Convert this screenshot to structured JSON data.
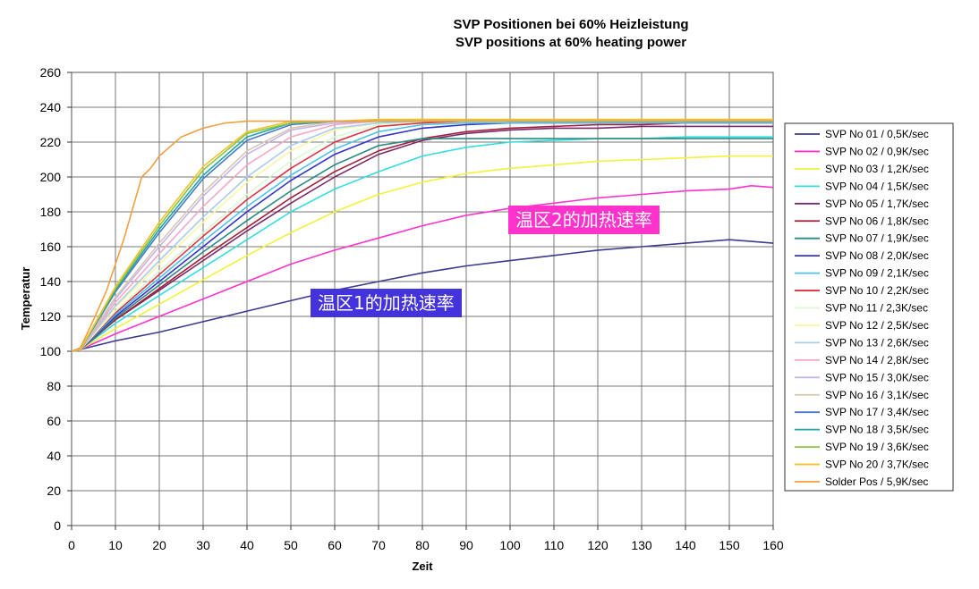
{
  "chart_data": {
    "type": "line",
    "title": "SVP Positionen bei 60% Heizleistung",
    "subtitle": "SVP positions at 60% heating power",
    "xlabel": "Zeit",
    "ylabel": "Temperatur",
    "xlim": [
      0,
      160
    ],
    "ylim": [
      0,
      260
    ],
    "xticks": [
      0,
      10,
      20,
      30,
      40,
      50,
      60,
      70,
      80,
      90,
      100,
      110,
      120,
      130,
      140,
      150,
      160
    ],
    "yticks": [
      0,
      20,
      40,
      60,
      80,
      100,
      120,
      140,
      160,
      180,
      200,
      220,
      240,
      260
    ],
    "grid": true,
    "legend_position": "right",
    "series": [
      {
        "name": "SVP No 01 / 0,5K/sec",
        "color": "#3b3b8e",
        "x": [
          0,
          2,
          10,
          20,
          30,
          40,
          50,
          60,
          70,
          80,
          90,
          100,
          110,
          120,
          130,
          140,
          150,
          155,
          160
        ],
        "y": [
          100,
          101,
          106,
          111,
          117,
          123,
          129,
          135,
          140,
          145,
          149,
          152,
          155,
          158,
          160,
          162,
          164,
          163,
          162
        ]
      },
      {
        "name": "SVP No 02 / 0,9K/sec",
        "color": "#ff33cc",
        "x": [
          0,
          2,
          10,
          20,
          30,
          40,
          50,
          60,
          70,
          80,
          90,
          100,
          110,
          120,
          130,
          140,
          150,
          155,
          160
        ],
        "y": [
          100,
          101,
          110,
          120,
          130,
          140,
          150,
          158,
          165,
          172,
          178,
          182,
          185,
          188,
          190,
          192,
          193,
          195,
          194
        ]
      },
      {
        "name": "SVP No 03 / 1,2K/sec",
        "color": "#f2f23a",
        "x": [
          0,
          2,
          10,
          20,
          30,
          40,
          50,
          60,
          70,
          80,
          90,
          100,
          110,
          120,
          130,
          140,
          150,
          160
        ],
        "y": [
          100,
          101,
          113,
          127,
          141,
          155,
          168,
          180,
          190,
          197,
          202,
          205,
          207,
          209,
          210,
          211,
          212,
          212
        ]
      },
      {
        "name": "SVP No 04 / 1,5K/sec",
        "color": "#33dddd",
        "x": [
          0,
          2,
          10,
          20,
          30,
          40,
          50,
          60,
          70,
          80,
          90,
          100,
          110,
          120,
          130,
          140,
          150,
          160
        ],
        "y": [
          100,
          101,
          116,
          132,
          148,
          164,
          180,
          193,
          203,
          212,
          217,
          220,
          221,
          222,
          222,
          223,
          223,
          223
        ]
      },
      {
        "name": "SVP No 05 / 1,7K/sec",
        "color": "#7a2a6a",
        "x": [
          0,
          2,
          10,
          20,
          30,
          40,
          50,
          60,
          70,
          80,
          90,
          100,
          110,
          120,
          130,
          140,
          150,
          160
        ],
        "y": [
          100,
          101,
          118,
          135,
          152,
          169,
          185,
          200,
          213,
          221,
          225,
          227,
          228,
          228,
          229,
          229,
          229,
          229
        ]
      },
      {
        "name": "SVP No 06 / 1,8K/sec",
        "color": "#a3203a",
        "x": [
          0,
          2,
          10,
          20,
          30,
          40,
          50,
          60,
          70,
          80,
          90,
          100,
          110,
          120,
          130,
          140,
          150,
          160
        ],
        "y": [
          100,
          101,
          118,
          136,
          154,
          171,
          188,
          203,
          215,
          222,
          226,
          228,
          229,
          230,
          230,
          231,
          231,
          231
        ]
      },
      {
        "name": "SVP No 07 / 1,9K/sec",
        "color": "#2d8a80",
        "x": [
          0,
          2,
          10,
          20,
          30,
          40,
          50,
          60,
          70,
          80,
          90,
          100,
          110,
          120,
          130,
          140,
          150,
          160
        ],
        "y": [
          100,
          101,
          119,
          138,
          157,
          175,
          192,
          207,
          218,
          222,
          222,
          222,
          222,
          222,
          222,
          222,
          222,
          222
        ]
      },
      {
        "name": "SVP No 08 / 2,0K/sec",
        "color": "#3333cc",
        "x": [
          0,
          2,
          10,
          20,
          30,
          40,
          50,
          60,
          70,
          80,
          90,
          100,
          110,
          120,
          130,
          140,
          150,
          160
        ],
        "y": [
          100,
          101,
          120,
          140,
          160,
          180,
          198,
          213,
          223,
          228,
          230,
          231,
          231,
          231,
          231,
          231,
          231,
          231
        ]
      },
      {
        "name": "SVP No 09 / 2,1K/sec",
        "color": "#4cc3e8",
        "x": [
          0,
          2,
          10,
          20,
          30,
          40,
          50,
          60,
          70,
          80,
          90,
          100,
          110,
          120,
          130,
          140,
          150,
          160
        ],
        "y": [
          100,
          101,
          121,
          142,
          163,
          183,
          201,
          216,
          226,
          230,
          231,
          231,
          231,
          231,
          231,
          231,
          231,
          231
        ]
      },
      {
        "name": "SVP No 10 / 2,2K/sec",
        "color": "#dd3344",
        "x": [
          0,
          2,
          10,
          20,
          30,
          40,
          50,
          60,
          70,
          80,
          90,
          100,
          110,
          120,
          130,
          140,
          150,
          160
        ],
        "y": [
          100,
          101,
          122,
          144,
          166,
          187,
          205,
          220,
          229,
          231,
          232,
          232,
          232,
          232,
          232,
          232,
          232,
          232
        ]
      },
      {
        "name": "SVP No 11 / 2,3K/sec",
        "color": "#ddf7d0",
        "x": [
          0,
          2,
          10,
          20,
          30,
          40,
          50,
          60,
          70,
          80,
          90,
          100,
          110,
          120,
          130,
          140,
          150,
          160
        ],
        "y": [
          100,
          101,
          123,
          146,
          168,
          190,
          209,
          223,
          230,
          232,
          232,
          232,
          232,
          232,
          232,
          232,
          232,
          232
        ]
      },
      {
        "name": "SVP No 12 / 2,5K/sec",
        "color": "#f7f7a8",
        "x": [
          0,
          2,
          10,
          20,
          30,
          40,
          50,
          60,
          70,
          80,
          90,
          100,
          110,
          120,
          130,
          140,
          150,
          160
        ],
        "y": [
          100,
          101,
          125,
          150,
          174,
          197,
          215,
          227,
          231,
          232,
          232,
          232,
          232,
          232,
          232,
          232,
          232,
          232
        ]
      },
      {
        "name": "SVP No 13 / 2,6K/sec",
        "color": "#a8cdea",
        "x": [
          0,
          2,
          10,
          20,
          30,
          40,
          50,
          60,
          70,
          80,
          90,
          100,
          110,
          120,
          130,
          140,
          150,
          160
        ],
        "y": [
          100,
          101,
          126,
          152,
          177,
          200,
          218,
          228,
          231,
          232,
          232,
          232,
          232,
          232,
          232,
          232,
          232,
          232
        ]
      },
      {
        "name": "SVP No 14 / 2,8K/sec",
        "color": "#f4a8c8",
        "x": [
          0,
          2,
          10,
          20,
          30,
          40,
          50,
          60,
          70,
          80,
          90,
          100,
          110,
          120,
          130,
          140,
          150,
          160
        ],
        "y": [
          100,
          101,
          128,
          156,
          183,
          207,
          223,
          230,
          232,
          232,
          232,
          232,
          232,
          232,
          232,
          232,
          232,
          232
        ]
      },
      {
        "name": "SVP No 15 / 3,0K/sec",
        "color": "#c7b3e6",
        "x": [
          0,
          2,
          10,
          20,
          30,
          40,
          50,
          60,
          70,
          80,
          90,
          100,
          110,
          120,
          130,
          140,
          150,
          160
        ],
        "y": [
          100,
          101,
          130,
          160,
          189,
          213,
          227,
          231,
          232,
          232,
          232,
          232,
          232,
          232,
          232,
          232,
          232,
          232
        ]
      },
      {
        "name": "SVP No 16 / 3,1K/sec",
        "color": "#d8c8b0",
        "x": [
          0,
          2,
          10,
          20,
          30,
          40,
          50,
          60,
          70,
          80,
          90,
          100,
          110,
          120,
          130,
          140,
          150,
          160
        ],
        "y": [
          100,
          101,
          131,
          162,
          191,
          215,
          228,
          232,
          232,
          232,
          232,
          232,
          232,
          232,
          232,
          232,
          232,
          232
        ]
      },
      {
        "name": "SVP No 17 / 3,4K/sec",
        "color": "#4a7ac8",
        "x": [
          0,
          2,
          10,
          20,
          30,
          40,
          50,
          60,
          70,
          80,
          90,
          100,
          110,
          120,
          130,
          140,
          150,
          160
        ],
        "y": [
          100,
          101,
          134,
          168,
          199,
          221,
          230,
          232,
          232,
          232,
          232,
          232,
          232,
          232,
          232,
          232,
          232,
          232
        ]
      },
      {
        "name": "SVP No 18 / 3,5K/sec",
        "color": "#1fa6a6",
        "x": [
          0,
          2,
          10,
          20,
          30,
          40,
          50,
          60,
          70,
          80,
          90,
          100,
          110,
          120,
          130,
          140,
          150,
          160
        ],
        "y": [
          100,
          101,
          135,
          170,
          201,
          223,
          231,
          232,
          232,
          232,
          232,
          232,
          232,
          232,
          232,
          232,
          232,
          232
        ]
      },
      {
        "name": "SVP No 19 / 3,6K/sec",
        "color": "#8cc63f",
        "x": [
          0,
          2,
          10,
          20,
          30,
          40,
          50,
          60,
          70,
          80,
          90,
          100,
          110,
          120,
          130,
          140,
          150,
          160
        ],
        "y": [
          100,
          101,
          136,
          172,
          204,
          225,
          231,
          232,
          232,
          232,
          232,
          232,
          232,
          232,
          232,
          232,
          232,
          232
        ]
      },
      {
        "name": "SVP No 20 / 3,7K/sec",
        "color": "#f2c22e",
        "x": [
          0,
          2,
          10,
          20,
          30,
          40,
          50,
          60,
          70,
          80,
          90,
          100,
          110,
          120,
          130,
          140,
          150,
          160
        ],
        "y": [
          100,
          101,
          137,
          174,
          206,
          226,
          232,
          232,
          233,
          233,
          233,
          233,
          233,
          233,
          233,
          233,
          233,
          233
        ]
      },
      {
        "name": "Solder Pos / 5,9K/sec",
        "color": "#f0a040",
        "x": [
          0,
          2,
          5,
          8,
          12,
          16,
          18,
          20,
          25,
          30,
          35,
          40,
          45,
          50,
          60,
          70,
          80,
          90,
          100,
          110,
          120,
          130,
          140,
          150,
          160
        ],
        "y": [
          100,
          102,
          118,
          135,
          165,
          200,
          205,
          212,
          223,
          228,
          231,
          232,
          232,
          232,
          232,
          232,
          232,
          232,
          232,
          232,
          232,
          232,
          232,
          232,
          232
        ]
      }
    ],
    "annotations": [
      {
        "text": "温区2的加热速率",
        "color": "#ff33cc"
      },
      {
        "text": "温区1的加热速率",
        "color": "#4433dd"
      }
    ]
  }
}
